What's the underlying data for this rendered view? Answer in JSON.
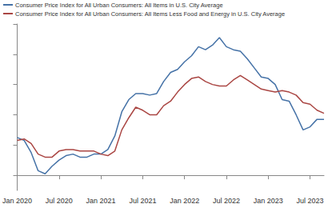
{
  "chart_data": {
    "type": "line",
    "categories": [
      "Jan 2020",
      null,
      null,
      null,
      null,
      null,
      "Jul 2020",
      null,
      null,
      null,
      null,
      null,
      "Jan 2021",
      null,
      null,
      null,
      null,
      null,
      "Jul 2021",
      null,
      null,
      null,
      null,
      null,
      "Jan 2022",
      null,
      null,
      null,
      null,
      null,
      "Jul 2022",
      null,
      null,
      null,
      null,
      null,
      "Jan 2023",
      null,
      null,
      null,
      null,
      null,
      "Jul 2023",
      null,
      null
    ],
    "series": [
      {
        "name": "Consumer Price Index for All Urban Consumers: All Items in U.S. City Average",
        "color": "#4572a7",
        "values": [
          2.5,
          2.3,
          1.5,
          0.3,
          0.1,
          0.6,
          1.0,
          1.3,
          1.4,
          1.2,
          1.2,
          1.4,
          1.4,
          1.7,
          2.6,
          4.2,
          5.0,
          5.4,
          5.4,
          5.3,
          5.4,
          6.2,
          6.8,
          7.0,
          7.5,
          7.9,
          8.5,
          8.3,
          8.6,
          9.1,
          8.5,
          8.3,
          8.2,
          7.7,
          7.1,
          6.5,
          6.4,
          6.0,
          5.0,
          4.9,
          4.0,
          3.0,
          3.2,
          3.7,
          3.7
        ]
      },
      {
        "name": "Consumer Price Index for All Urban Consumers: All Items Less Food and Energy in U.S. City Average",
        "color": "#aa4643",
        "values": [
          2.3,
          2.4,
          2.1,
          1.4,
          1.2,
          1.2,
          1.6,
          1.7,
          1.7,
          1.6,
          1.6,
          1.6,
          1.4,
          1.3,
          1.6,
          3.0,
          3.8,
          4.5,
          4.3,
          4.0,
          4.0,
          4.6,
          4.9,
          5.5,
          6.0,
          6.4,
          6.5,
          6.2,
          6.0,
          5.9,
          5.9,
          6.3,
          6.6,
          6.3,
          6.0,
          5.7,
          5.6,
          5.5,
          5.6,
          5.5,
          5.3,
          4.8,
          4.7,
          4.3,
          4.1
        ]
      }
    ],
    "ylim": [
      -1,
      10
    ],
    "yticks": [
      0,
      2,
      4,
      6,
      8,
      10
    ],
    "grid": false,
    "legend": "top-left",
    "tick_labels": "x"
  }
}
